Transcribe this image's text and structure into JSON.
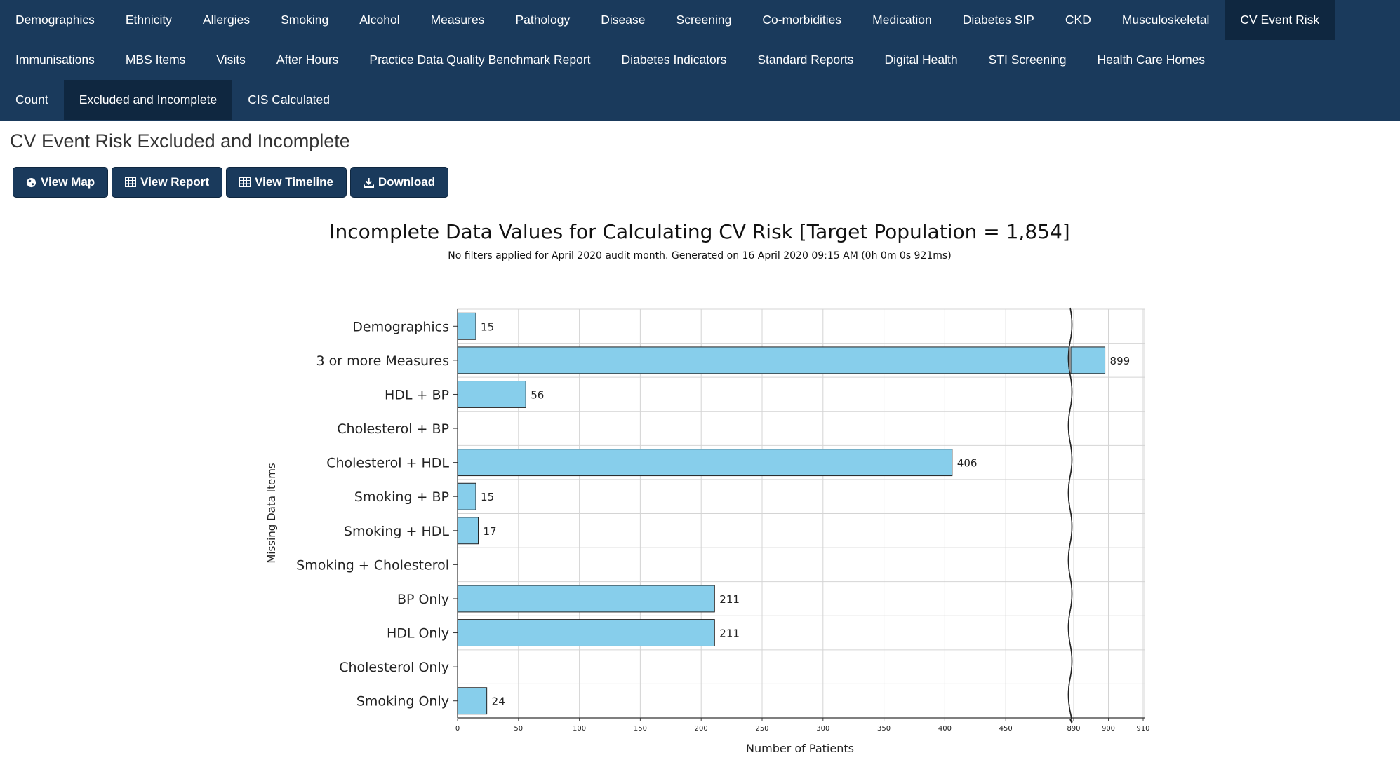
{
  "nav": {
    "row1": [
      "Demographics",
      "Ethnicity",
      "Allergies",
      "Smoking",
      "Alcohol",
      "Measures",
      "Pathology",
      "Disease",
      "Screening",
      "Co-morbidities",
      "Medication",
      "Diabetes SIP",
      "CKD",
      "Musculoskeletal",
      "CV Event Risk"
    ],
    "row2": [
      "Immunisations",
      "MBS Items",
      "Visits",
      "After Hours",
      "Practice Data Quality Benchmark Report",
      "Diabetes Indicators",
      "Standard Reports",
      "Digital Health",
      "STI Screening",
      "Health Care Homes"
    ],
    "row3": [
      "Count",
      "Excluded and Incomplete",
      "CIS Calculated"
    ],
    "active_row1": "CV Event Risk",
    "active_row3": "Excluded and Incomplete"
  },
  "page": {
    "title": "CV Event Risk Excluded and Incomplete"
  },
  "buttons": {
    "view_map": "View Map",
    "view_report": "View Report",
    "view_timeline": "View Timeline",
    "download": "Download"
  },
  "icons": [
    "globe-icon",
    "table-icon",
    "table-icon",
    "download-icon"
  ],
  "colors": {
    "nav_bg": "#1a3a5c",
    "nav_active": "#0f2740",
    "bar_fill": "#87ceeb",
    "bar_stroke": "#222222"
  },
  "chart_data": {
    "type": "bar",
    "orientation": "horizontal",
    "title": "Incomplete Data Values for Calculating CV Risk [Target Population = 1,854]",
    "subtitle": "No filters applied for April 2020 audit month. Generated on 16 April 2020 09:15 AM (0h 0m 0s 921ms)",
    "xlabel": "Number of Patients",
    "ylabel": "Missing Data Items",
    "categories": [
      "Demographics",
      "3 or more Measures",
      "HDL + BP",
      "Cholesterol + BP",
      "Cholesterol + HDL",
      "Smoking + BP",
      "Smoking + HDL",
      "Smoking + Cholesterol",
      "BP Only",
      "HDL Only",
      "Cholesterol Only",
      "Smoking Only"
    ],
    "values": [
      15,
      899,
      56,
      null,
      406,
      15,
      17,
      null,
      211,
      211,
      null,
      24
    ],
    "value_labels": [
      "15",
      "899",
      "56",
      "",
      "406",
      "15",
      "17",
      "",
      "211",
      "211",
      "",
      "24"
    ],
    "axis_break": {
      "from": 500,
      "to": 890
    },
    "xticks": [
      "0",
      "50",
      "100",
      "150",
      "200",
      "250",
      "300",
      "350",
      "400",
      "450",
      "890",
      "900",
      "910"
    ],
    "xlim_segment1": [
      0,
      500
    ],
    "xlim_segment2": [
      890,
      910
    ],
    "grid": true
  }
}
